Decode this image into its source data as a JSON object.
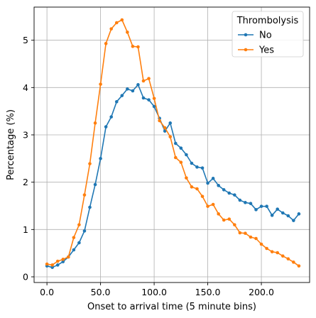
{
  "chart_data": {
    "type": "line",
    "title": "",
    "xlabel": "Onset to arrival time (5 minute bins)",
    "ylabel": "Percentage (%)",
    "xlim": [
      -12,
      245
    ],
    "ylim": [
      -0.12,
      5.7
    ],
    "grid": true,
    "xticks": [
      0,
      50,
      100,
      150,
      200
    ],
    "xtick_labels": [
      "0.0",
      "50.0",
      "100.0",
      "150.0",
      "200.0"
    ],
    "yticks": [
      0,
      1,
      2,
      3,
      4,
      5
    ],
    "ytick_labels": [
      "0",
      "1",
      "2",
      "3",
      "4",
      "5"
    ],
    "legend": {
      "title": "Thrombolysis",
      "placement": "top-right"
    },
    "x": [
      0,
      5,
      10,
      15,
      20,
      25,
      30,
      35,
      40,
      45,
      50,
      55,
      60,
      65,
      70,
      75,
      80,
      85,
      90,
      95,
      100,
      105,
      110,
      115,
      120,
      125,
      130,
      135,
      140,
      145,
      150,
      155,
      160,
      165,
      170,
      175,
      180,
      185,
      190,
      195,
      200,
      205,
      210,
      215,
      220,
      225,
      230,
      235
    ],
    "series": [
      {
        "name": "No",
        "color": "#1f77b4",
        "values": [
          0.23,
          0.2,
          0.25,
          0.32,
          0.42,
          0.57,
          0.72,
          0.97,
          1.47,
          1.95,
          2.5,
          3.17,
          3.38,
          3.7,
          3.83,
          3.97,
          3.93,
          4.06,
          3.78,
          3.74,
          3.6,
          3.35,
          3.08,
          3.25,
          2.82,
          2.72,
          2.58,
          2.4,
          2.32,
          2.3,
          1.98,
          2.08,
          1.93,
          1.84,
          1.77,
          1.73,
          1.62,
          1.57,
          1.55,
          1.42,
          1.49,
          1.49,
          1.3,
          1.43,
          1.35,
          1.29,
          1.19,
          1.33
        ]
      },
      {
        "name": "Yes",
        "color": "#ff7f0e",
        "values": [
          0.27,
          0.25,
          0.33,
          0.37,
          0.42,
          0.83,
          1.1,
          1.73,
          2.39,
          3.25,
          4.07,
          4.93,
          5.24,
          5.37,
          5.43,
          5.17,
          4.87,
          4.86,
          4.14,
          4.19,
          3.77,
          3.3,
          3.15,
          2.96,
          2.52,
          2.42,
          2.09,
          1.9,
          1.86,
          1.7,
          1.49,
          1.53,
          1.33,
          1.2,
          1.22,
          1.1,
          0.93,
          0.92,
          0.84,
          0.81,
          0.69,
          0.6,
          0.53,
          0.51,
          0.44,
          0.38,
          0.31,
          0.23
        ]
      }
    ]
  }
}
